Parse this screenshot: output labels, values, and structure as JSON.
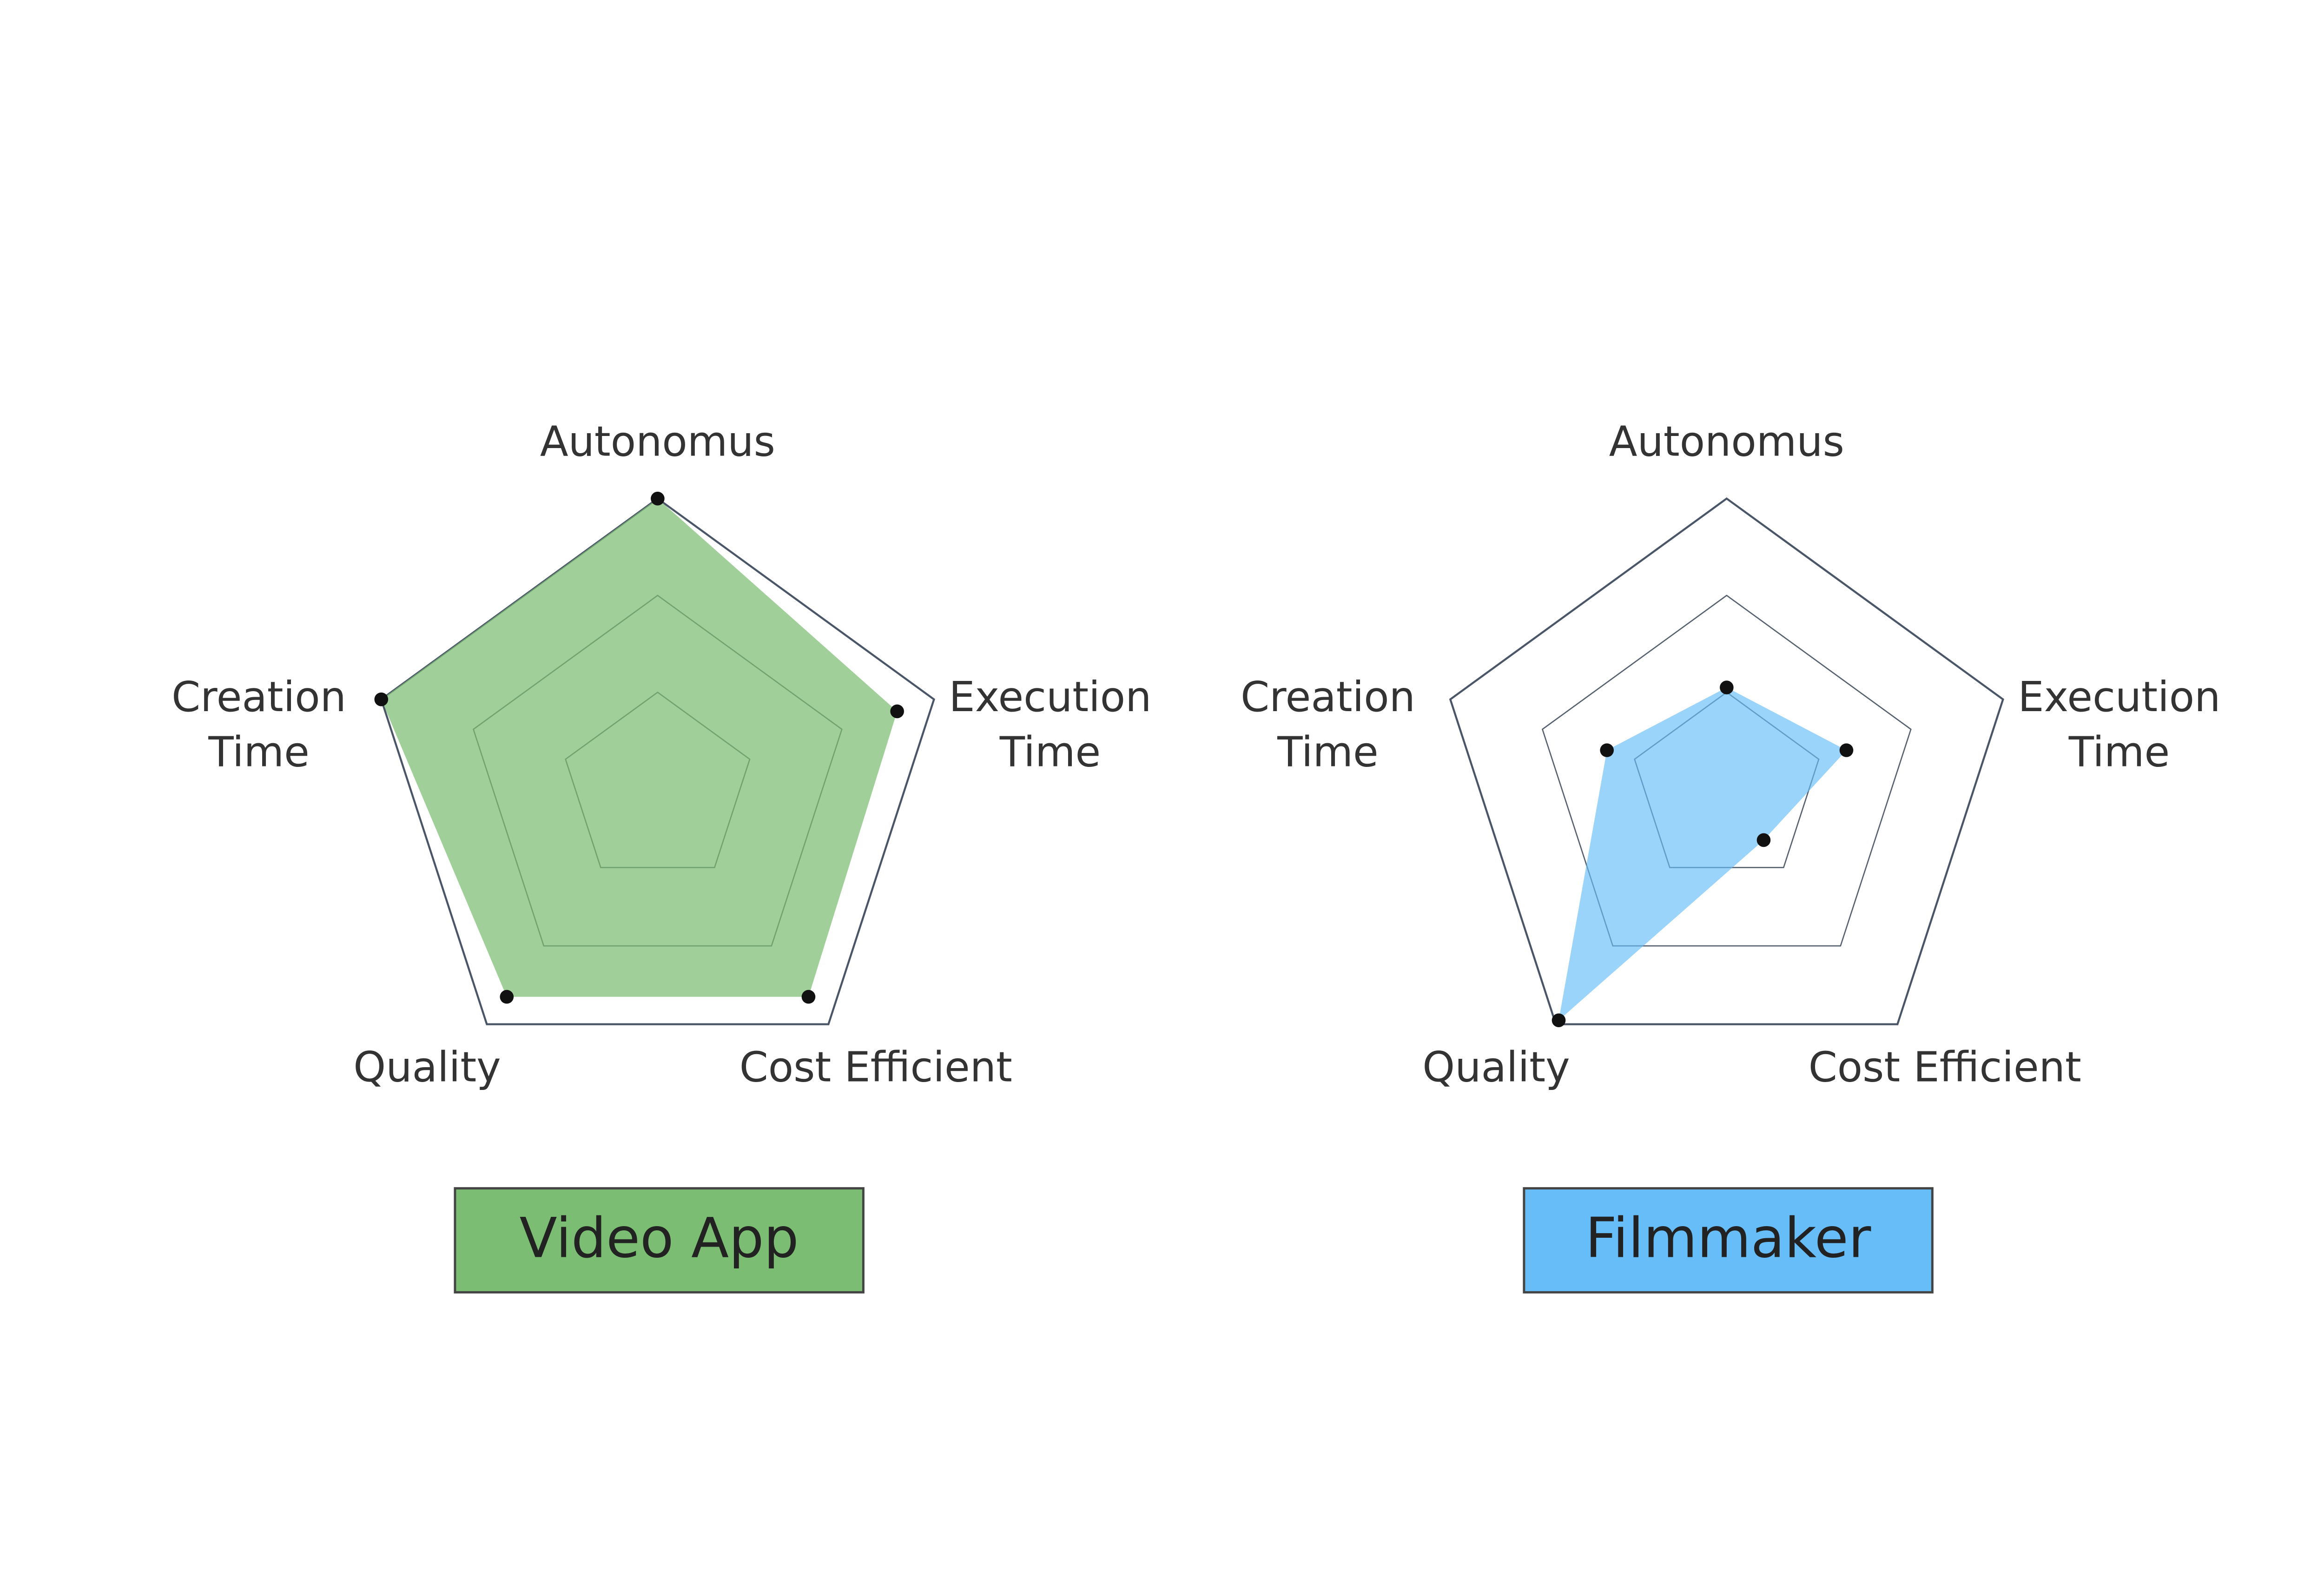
{
  "chart_data": [
    {
      "type": "radar",
      "categories": [
        "Autonomus",
        "Execution Time",
        "Cost Efficient",
        "Quality",
        "Creation Time"
      ],
      "series": [
        {
          "name": "Video App",
          "color": "#7bbd72",
          "values": [
            3,
            2.6,
            2.65,
            2.65,
            3
          ]
        }
      ],
      "rlim": [
        0,
        3
      ],
      "rticks": [
        1,
        2,
        3
      ],
      "grid": true
    },
    {
      "type": "radar",
      "categories": [
        "Autonomus",
        "Execution Time",
        "Cost Efficient",
        "Quality",
        "Creation Time"
      ],
      "series": [
        {
          "name": "Filmmaker",
          "color": "#66bdf8",
          "values": [
            1.05,
            1.3,
            0.65,
            2.95,
            1.3
          ]
        }
      ],
      "rlim": [
        0,
        3
      ],
      "rticks": [
        1,
        2,
        3
      ],
      "grid": true
    }
  ]
}
